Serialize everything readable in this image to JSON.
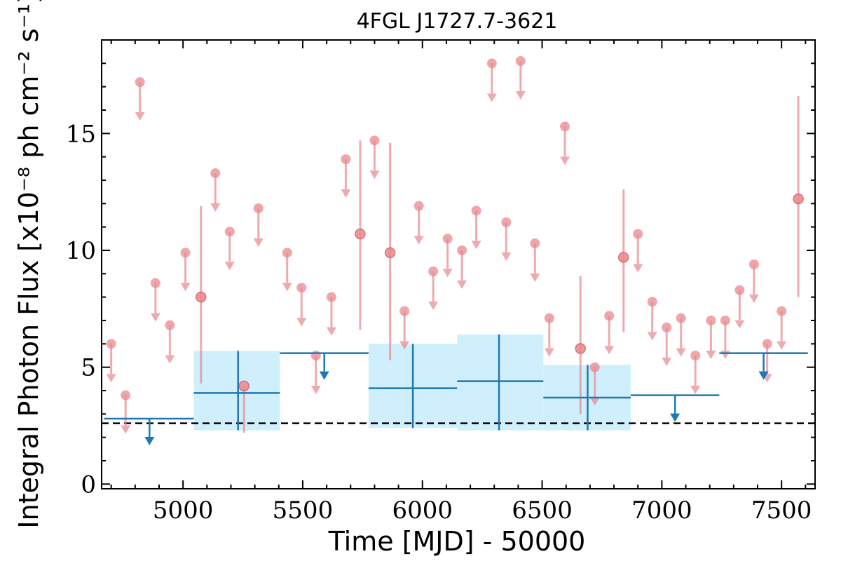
{
  "chart_data": {
    "type": "scatter",
    "title": "4FGL J1727.7-3621",
    "xlabel": "Time [MJD] - 50000",
    "ylabel": "Integral Photon Flux [x10⁻⁸ ph cm⁻² s⁻¹]",
    "xlim": [
      4660,
      7640
    ],
    "ylim": [
      -0.2,
      19.0
    ],
    "x_ticks": [
      5000,
      5500,
      6000,
      6500,
      7000,
      7500
    ],
    "y_ticks": [
      0,
      5,
      10,
      15
    ],
    "reference_level": 2.6,
    "colors": {
      "fine_bins": "#e8888e",
      "coarse_bins": "#1f77b4",
      "coarse_band": "#cdeefc",
      "reference": "#000000"
    },
    "series": [
      {
        "kind": "fine-bin-upper-limits",
        "points": [
          [
            4700,
            6.0
          ],
          [
            4760,
            3.8
          ],
          [
            4820,
            17.2
          ],
          [
            4885,
            8.6
          ],
          [
            4945,
            6.8
          ],
          [
            5010,
            9.9
          ],
          [
            5135,
            13.3
          ],
          [
            5195,
            10.8
          ],
          [
            5315,
            11.8
          ],
          [
            5435,
            9.9
          ],
          [
            5495,
            8.4
          ],
          [
            5555,
            5.5
          ],
          [
            5620,
            8.0
          ],
          [
            5680,
            13.9
          ],
          [
            5800,
            14.7
          ],
          [
            5925,
            7.4
          ],
          [
            5985,
            11.9
          ],
          [
            6045,
            9.1
          ],
          [
            6105,
            10.5
          ],
          [
            6165,
            10.0
          ],
          [
            6225,
            11.7
          ],
          [
            6290,
            18.0
          ],
          [
            6350,
            11.2
          ],
          [
            6410,
            18.1
          ],
          [
            6470,
            10.3
          ],
          [
            6530,
            7.1
          ],
          [
            6595,
            15.3
          ],
          [
            6720,
            5.0
          ],
          [
            6780,
            7.2
          ],
          [
            6900,
            10.7
          ],
          [
            6960,
            7.8
          ],
          [
            7020,
            6.7
          ],
          [
            7080,
            7.1
          ],
          [
            7140,
            5.5
          ],
          [
            7205,
            7.0
          ],
          [
            7265,
            7.0
          ],
          [
            7325,
            8.3
          ],
          [
            7385,
            9.4
          ],
          [
            7440,
            6.0
          ],
          [
            7500,
            7.4
          ]
        ]
      },
      {
        "kind": "fine-bin-detections",
        "points": [
          {
            "x": 5075,
            "y": 8.0,
            "lo": 4.3,
            "hi": 11.9
          },
          {
            "x": 5255,
            "y": 4.2,
            "lo": 2.2,
            "hi": 4.2
          },
          {
            "x": 5740,
            "y": 10.7,
            "lo": 6.6,
            "hi": 14.7
          },
          {
            "x": 5865,
            "y": 9.9,
            "lo": 5.3,
            "hi": 14.6
          },
          {
            "x": 6660,
            "y": 5.8,
            "lo": 3.0,
            "hi": 8.9
          },
          {
            "x": 6840,
            "y": 9.7,
            "lo": 6.5,
            "hi": 12.6
          },
          {
            "x": 7570,
            "y": 12.2,
            "lo": 8.0,
            "hi": 16.6
          }
        ]
      },
      {
        "kind": "coarse-bin-upper-limits",
        "points": [
          {
            "x0": 4670,
            "x1": 5045,
            "y": 2.8,
            "xm": 4860
          },
          {
            "x0": 5405,
            "x1": 5775,
            "y": 5.6,
            "xm": 5590
          },
          {
            "x0": 6870,
            "x1": 7240,
            "y": 3.8,
            "xm": 7055
          },
          {
            "x0": 7240,
            "x1": 7610,
            "y": 5.6,
            "xm": 7425
          }
        ]
      },
      {
        "kind": "coarse-bin-detections",
        "points": [
          {
            "x0": 5045,
            "x1": 5405,
            "xc": 5230,
            "y": 3.9,
            "lo": 2.3,
            "hi": 5.7
          },
          {
            "x0": 5775,
            "x1": 6145,
            "xc": 5960,
            "y": 4.1,
            "lo": 2.4,
            "hi": 6.0
          },
          {
            "x0": 6145,
            "x1": 6505,
            "xc": 6320,
            "y": 4.4,
            "lo": 2.3,
            "hi": 6.4
          },
          {
            "x0": 6505,
            "x1": 6870,
            "xc": 6690,
            "y": 3.7,
            "lo": 2.3,
            "hi": 5.1
          }
        ]
      }
    ]
  }
}
